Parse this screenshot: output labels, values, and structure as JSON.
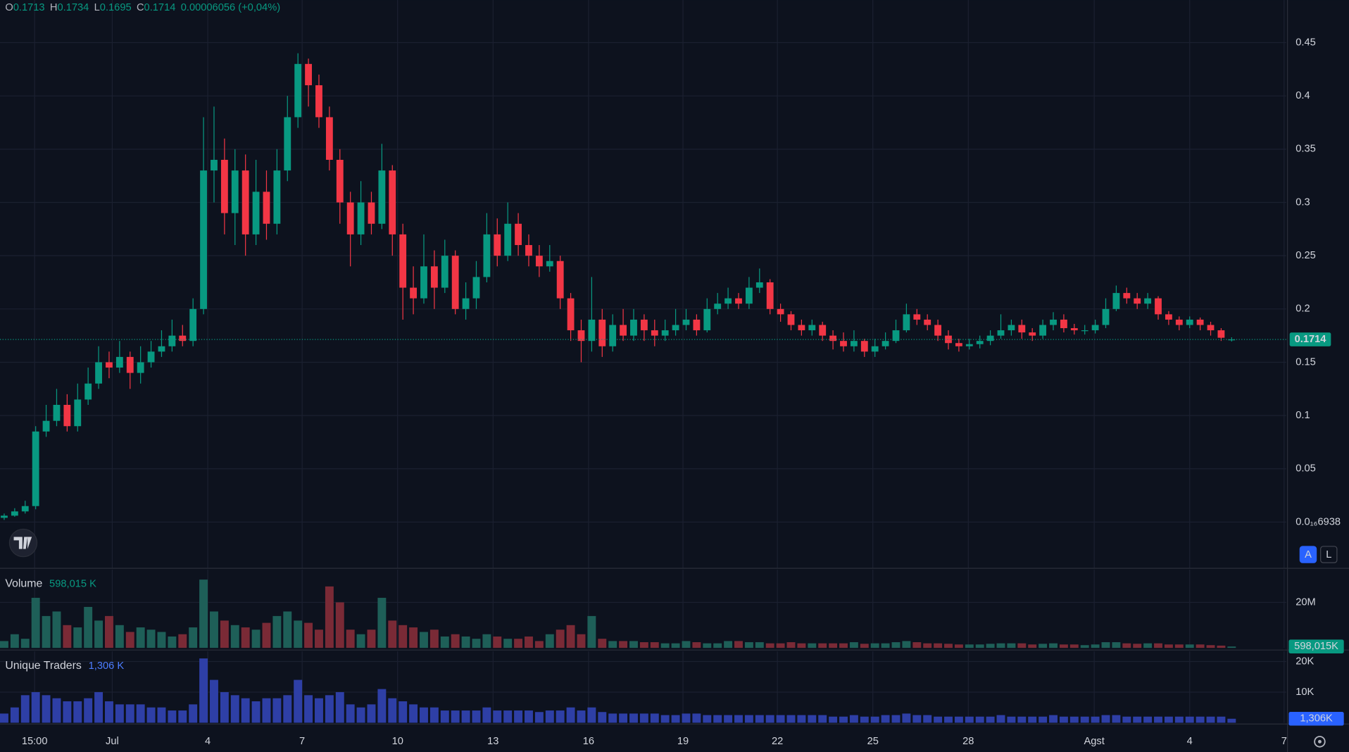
{
  "chart_data": [
    {
      "type": "candlestick",
      "header": [
        {
          "key": "O",
          "value": "0.1713"
        },
        {
          "key": "H",
          "value": "0.1734"
        },
        {
          "key": "L",
          "value": "0.1695"
        },
        {
          "key": "C",
          "value": "0.1714"
        }
      ],
      "change": "0.00006056 (+0,04%)",
      "up_color": "#089981",
      "down_color": "#f23645",
      "open": [
        0.004,
        0.006,
        0.01,
        0.015,
        0.085,
        0.095,
        0.11,
        0.09,
        0.115,
        0.13,
        0.15,
        0.145,
        0.155,
        0.14,
        0.15,
        0.16,
        0.165,
        0.175,
        0.17,
        0.2,
        0.33,
        0.34,
        0.29,
        0.33,
        0.27,
        0.31,
        0.28,
        0.33,
        0.38,
        0.43,
        0.41,
        0.38,
        0.34,
        0.3,
        0.27,
        0.3,
        0.28,
        0.33,
        0.27,
        0.22,
        0.21,
        0.24,
        0.22,
        0.25,
        0.2,
        0.21,
        0.23,
        0.27,
        0.25,
        0.28,
        0.26,
        0.25,
        0.24,
        0.245,
        0.21,
        0.18,
        0.17,
        0.19,
        0.165,
        0.185,
        0.175,
        0.19,
        0.18,
        0.175,
        0.18,
        0.185,
        0.19,
        0.18,
        0.2,
        0.205,
        0.21,
        0.205,
        0.22,
        0.225,
        0.2,
        0.195,
        0.185,
        0.18,
        0.185,
        0.175,
        0.17,
        0.165,
        0.17,
        0.16,
        0.165,
        0.17,
        0.18,
        0.195,
        0.19,
        0.185,
        0.175,
        0.168,
        0.165,
        0.167,
        0.17,
        0.175,
        0.18,
        0.185,
        0.178,
        0.175,
        0.185,
        0.19,
        0.182,
        0.18,
        0.18,
        0.185,
        0.2,
        0.215,
        0.21,
        0.205,
        0.21,
        0.195,
        0.19,
        0.185,
        0.19,
        0.185,
        0.18,
        0.1713
      ],
      "high": [
        0.008,
        0.013,
        0.02,
        0.09,
        0.11,
        0.125,
        0.12,
        0.13,
        0.145,
        0.165,
        0.16,
        0.17,
        0.16,
        0.165,
        0.17,
        0.18,
        0.19,
        0.185,
        0.21,
        0.38,
        0.39,
        0.36,
        0.35,
        0.345,
        0.34,
        0.33,
        0.35,
        0.4,
        0.44,
        0.435,
        0.42,
        0.39,
        0.35,
        0.31,
        0.32,
        0.31,
        0.355,
        0.335,
        0.28,
        0.24,
        0.27,
        0.255,
        0.265,
        0.255,
        0.225,
        0.245,
        0.29,
        0.285,
        0.3,
        0.29,
        0.27,
        0.26,
        0.26,
        0.25,
        0.215,
        0.19,
        0.23,
        0.2,
        0.195,
        0.2,
        0.2,
        0.195,
        0.19,
        0.19,
        0.2,
        0.2,
        0.195,
        0.21,
        0.215,
        0.22,
        0.215,
        0.23,
        0.238,
        0.228,
        0.205,
        0.198,
        0.19,
        0.19,
        0.188,
        0.18,
        0.178,
        0.18,
        0.172,
        0.172,
        0.178,
        0.19,
        0.205,
        0.2,
        0.195,
        0.19,
        0.18,
        0.172,
        0.172,
        0.175,
        0.18,
        0.195,
        0.19,
        0.19,
        0.182,
        0.19,
        0.197,
        0.195,
        0.186,
        0.185,
        0.19,
        0.21,
        0.222,
        0.22,
        0.215,
        0.215,
        0.212,
        0.198,
        0.193,
        0.193,
        0.192,
        0.188,
        0.182,
        0.1734
      ],
      "low": [
        0.002,
        0.005,
        0.008,
        0.012,
        0.08,
        0.09,
        0.085,
        0.085,
        0.11,
        0.125,
        0.135,
        0.14,
        0.125,
        0.13,
        0.145,
        0.155,
        0.16,
        0.165,
        0.165,
        0.195,
        0.3,
        0.27,
        0.26,
        0.25,
        0.26,
        0.265,
        0.27,
        0.32,
        0.37,
        0.39,
        0.37,
        0.33,
        0.28,
        0.24,
        0.26,
        0.27,
        0.275,
        0.25,
        0.19,
        0.195,
        0.205,
        0.2,
        0.215,
        0.195,
        0.19,
        0.2,
        0.225,
        0.24,
        0.245,
        0.25,
        0.24,
        0.23,
        0.235,
        0.2,
        0.17,
        0.15,
        0.16,
        0.155,
        0.16,
        0.17,
        0.17,
        0.17,
        0.165,
        0.17,
        0.175,
        0.18,
        0.175,
        0.178,
        0.195,
        0.2,
        0.2,
        0.2,
        0.215,
        0.195,
        0.188,
        0.18,
        0.175,
        0.175,
        0.17,
        0.162,
        0.16,
        0.16,
        0.155,
        0.155,
        0.162,
        0.168,
        0.178,
        0.185,
        0.18,
        0.17,
        0.162,
        0.16,
        0.162,
        0.163,
        0.166,
        0.172,
        0.175,
        0.172,
        0.17,
        0.172,
        0.18,
        0.178,
        0.176,
        0.176,
        0.177,
        0.182,
        0.198,
        0.205,
        0.2,
        0.2,
        0.19,
        0.185,
        0.18,
        0.182,
        0.18,
        0.175,
        0.17,
        0.1695
      ],
      "close": [
        0.006,
        0.01,
        0.015,
        0.085,
        0.095,
        0.11,
        0.09,
        0.115,
        0.13,
        0.15,
        0.145,
        0.155,
        0.14,
        0.15,
        0.16,
        0.165,
        0.175,
        0.17,
        0.2,
        0.33,
        0.34,
        0.29,
        0.33,
        0.27,
        0.31,
        0.28,
        0.33,
        0.38,
        0.43,
        0.41,
        0.38,
        0.34,
        0.3,
        0.27,
        0.3,
        0.28,
        0.33,
        0.27,
        0.22,
        0.21,
        0.24,
        0.22,
        0.25,
        0.2,
        0.21,
        0.23,
        0.27,
        0.25,
        0.28,
        0.26,
        0.25,
        0.24,
        0.245,
        0.21,
        0.18,
        0.17,
        0.19,
        0.165,
        0.185,
        0.175,
        0.19,
        0.18,
        0.175,
        0.18,
        0.185,
        0.19,
        0.18,
        0.2,
        0.205,
        0.21,
        0.205,
        0.22,
        0.225,
        0.2,
        0.195,
        0.185,
        0.18,
        0.185,
        0.175,
        0.17,
        0.165,
        0.17,
        0.16,
        0.165,
        0.17,
        0.18,
        0.195,
        0.19,
        0.185,
        0.175,
        0.168,
        0.165,
        0.167,
        0.17,
        0.175,
        0.18,
        0.185,
        0.178,
        0.175,
        0.185,
        0.19,
        0.182,
        0.18,
        0.18,
        0.185,
        0.2,
        0.215,
        0.21,
        0.205,
        0.21,
        0.195,
        0.19,
        0.185,
        0.19,
        0.185,
        0.18,
        0.173,
        0.1714
      ],
      "xlim": [
        -0.4,
        122.2
      ],
      "xticks": [
        {
          "value": 2.9,
          "label": "15:00"
        },
        {
          "value": 10.3,
          "label": "Jul"
        },
        {
          "value": 19.4,
          "label": "4"
        },
        {
          "value": 28.4,
          "label": "7"
        },
        {
          "value": 37.5,
          "label": "10"
        },
        {
          "value": 46.6,
          "label": "13"
        },
        {
          "value": 55.7,
          "label": "16"
        },
        {
          "value": 64.7,
          "label": "19"
        },
        {
          "value": 73.7,
          "label": "22"
        },
        {
          "value": 82.8,
          "label": "25"
        },
        {
          "value": 91.9,
          "label": "28"
        },
        {
          "value": 103.9,
          "label": "Agst"
        },
        {
          "value": 113.0,
          "label": "4"
        },
        {
          "value": 122.0,
          "label": "7"
        }
      ],
      "ylim": [
        -0.043,
        0.49
      ],
      "yticks": [
        0.45,
        0.4,
        0.35,
        0.3,
        0.25,
        0.2,
        0.15,
        0.1,
        0.05,
        {
          "value": 6.938e-17,
          "label": "0.0₁₆6938"
        }
      ],
      "grid": true,
      "price_line": {
        "value": 0.1714,
        "label": "0.1714"
      },
      "buttons": [
        "A",
        "L"
      ]
    },
    {
      "type": "bar",
      "title": "Volume",
      "legend_value": "598,015 K",
      "values": [
        3,
        6,
        4,
        22,
        14,
        16,
        10,
        9,
        18,
        12,
        14,
        10,
        7,
        9,
        8,
        7,
        5,
        6,
        9,
        30,
        16,
        12,
        10,
        9,
        8,
        11,
        14,
        16,
        12,
        11,
        8,
        27,
        20,
        8,
        6,
        8,
        22,
        12,
        10,
        9,
        7,
        8,
        5,
        6,
        5,
        4,
        6,
        5,
        4,
        4,
        5,
        3,
        6,
        8,
        10,
        6,
        14,
        4,
        3,
        3,
        3,
        2.5,
        2.5,
        2,
        2,
        3,
        2.5,
        2,
        2,
        3,
        3,
        2.5,
        2.5,
        2,
        2,
        2.5,
        2,
        2,
        2,
        2,
        2,
        2.5,
        1.8,
        2,
        2,
        2.5,
        3,
        2.5,
        2,
        2,
        1.8,
        1.5,
        1.5,
        1.5,
        1.8,
        2,
        2,
        2,
        1.5,
        1.8,
        2,
        1.5,
        1.5,
        1.2,
        1.5,
        2.5,
        2.5,
        2,
        1.8,
        2,
        2,
        1.5,
        1.5,
        1.5,
        1.5,
        1.2,
        1,
        0.598015
      ],
      "up_color": "#1e5f58",
      "down_color": "#7a2a36",
      "ylim": [
        0,
        34.4
      ],
      "yticks": [
        {
          "value": 20,
          "label": "20M"
        }
      ],
      "grid": true,
      "badge": {
        "value": 0.598015,
        "label": "598,015K"
      },
      "badge_color": "#089981"
    },
    {
      "type": "bar",
      "title": "Unique Traders",
      "legend_value": "1,306 K",
      "values": [
        3,
        5,
        9,
        10,
        9,
        8,
        7,
        7,
        8,
        10,
        7,
        6,
        6,
        6,
        5,
        5,
        4,
        4,
        6,
        21,
        14,
        10,
        9,
        8,
        7,
        8,
        8,
        9,
        14,
        9,
        8,
        9,
        10,
        6,
        5,
        6,
        11,
        8,
        7,
        6,
        5,
        5,
        4,
        4,
        4,
        4,
        5,
        4,
        4,
        4,
        4,
        3.5,
        4,
        4,
        5,
        4,
        5,
        3.5,
        3,
        3,
        3,
        3,
        3,
        2.5,
        2.5,
        3,
        3,
        2.5,
        2.5,
        2.5,
        2.5,
        2.5,
        2.5,
        2.5,
        2.5,
        2.5,
        2.5,
        2.5,
        2.5,
        2,
        2,
        2.5,
        2,
        2,
        2.5,
        2.5,
        3,
        2.5,
        2.5,
        2,
        2,
        2,
        2,
        2,
        2,
        2.5,
        2,
        2,
        2,
        2,
        2.5,
        2,
        2,
        2,
        2,
        2.5,
        2.5,
        2,
        2,
        2,
        2,
        2,
        2,
        2,
        2,
        2,
        2,
        1.306
      ],
      "color": "#2e3fa6",
      "ylim": [
        0,
        23.33
      ],
      "yticks": [
        {
          "value": 20,
          "label": "20K"
        },
        {
          "value": 10,
          "label": "10K"
        }
      ],
      "grid": true,
      "badge": {
        "value": 1.306,
        "label": "1,306K"
      },
      "badge_color": "#2962ff"
    }
  ]
}
